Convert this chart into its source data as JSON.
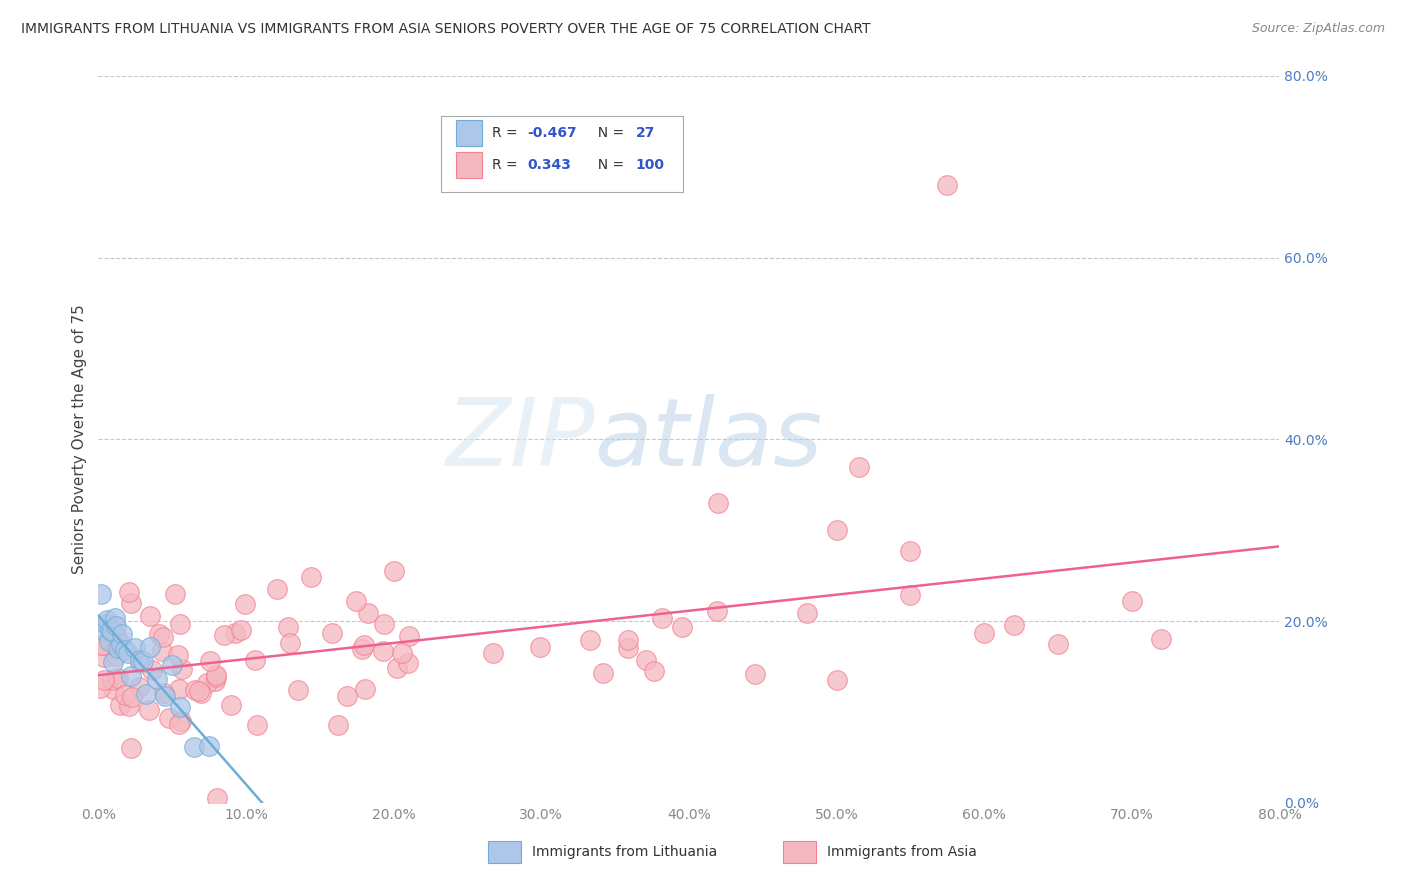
{
  "title": "IMMIGRANTS FROM LITHUANIA VS IMMIGRANTS FROM ASIA SENIORS POVERTY OVER THE AGE OF 75 CORRELATION CHART",
  "source": "Source: ZipAtlas.com",
  "ylabel": "Seniors Poverty Over the Age of 75",
  "xlim": [
    0.0,
    0.8
  ],
  "ylim": [
    0.0,
    0.8
  ],
  "color_lithuania_face": "#aec6e8",
  "color_lithuania_edge": "#6baed6",
  "color_asia_face": "#f4b8c1",
  "color_asia_edge": "#f48090",
  "color_line_lithuania": "#6baed6",
  "color_line_asia": "#f06090",
  "background_color": "#ffffff",
  "grid_color": "#c8c8c8",
  "watermark_color": "#d5e8f5",
  "ytick_color": "#4a7cc4",
  "xtick_color": "#888888",
  "legend_r1_val": "-0.467",
  "legend_n1_val": "27",
  "legend_r2_val": "0.343",
  "legend_n2_val": "100"
}
